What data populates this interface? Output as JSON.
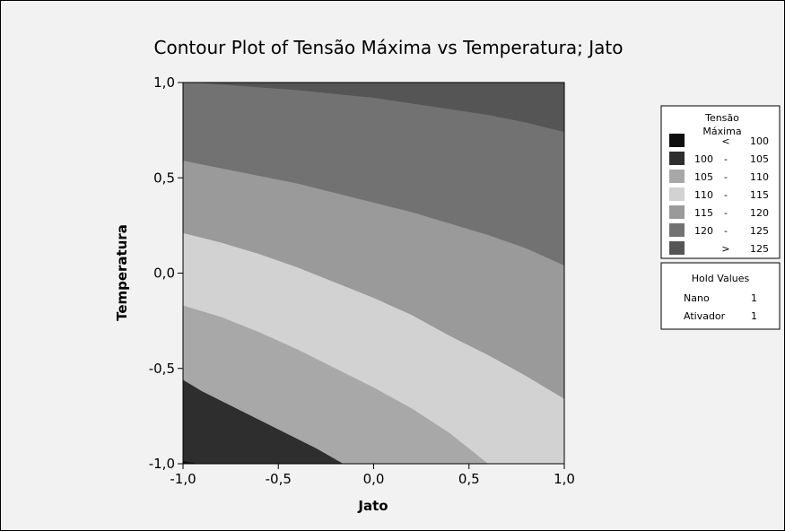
{
  "chart_data": {
    "type": "contour",
    "title": "Contour Plot of Tensão Máxima vs Temperatura; Jato",
    "xlabel": "Jato",
    "ylabel": "Temperatura",
    "xlim": [
      -1.0,
      1.0
    ],
    "ylim": [
      -1.0,
      1.0
    ],
    "x_ticks": [
      "-1,0",
      "-0,5",
      "0,0",
      "0,5",
      "1,0"
    ],
    "y_ticks": [
      "-1,0",
      "-0,5",
      "0,0",
      "0,5",
      "1,0"
    ],
    "x_tick_values": [
      -1.0,
      -0.5,
      0.0,
      0.5,
      1.0
    ],
    "y_tick_values": [
      -1.0,
      -0.5,
      0.0,
      0.5,
      1.0
    ],
    "legend": {
      "title_line1": "Tensão",
      "title_line2": "Máxima",
      "levels": [
        {
          "low": "",
          "sep": "<",
          "high": "100",
          "color": "#0e0e0e"
        },
        {
          "low": "100",
          "sep": "-",
          "high": "105",
          "color": "#2e2e2e"
        },
        {
          "low": "105",
          "sep": "-",
          "high": "110",
          "color": "#a8a8a8"
        },
        {
          "low": "110",
          "sep": "-",
          "high": "115",
          "color": "#d2d2d2"
        },
        {
          "low": "115",
          "sep": "-",
          "high": "120",
          "color": "#9a9a9a"
        },
        {
          "low": "120",
          "sep": "-",
          "high": "125",
          "color": "#727272"
        },
        {
          "low": "",
          "sep": ">",
          "high": "125",
          "color": "#555555"
        }
      ],
      "placement": "right"
    },
    "hold_values": {
      "title": "Hold Values",
      "items": [
        {
          "name": "Nano",
          "value": "1"
        },
        {
          "name": "Ativador",
          "value": "1"
        }
      ]
    },
    "contour_lines": [
      {
        "level": 100,
        "points": [
          [
            -1.0,
            -0.985
          ],
          [
            -0.92,
            -1.0
          ]
        ]
      },
      {
        "level": 105,
        "points": [
          [
            -1.0,
            -0.56
          ],
          [
            -0.9,
            -0.62
          ],
          [
            -0.7,
            -0.72
          ],
          [
            -0.5,
            -0.82
          ],
          [
            -0.3,
            -0.92
          ],
          [
            -0.16,
            -1.0
          ]
        ]
      },
      {
        "level": 110,
        "points": [
          [
            -1.0,
            -0.17
          ],
          [
            -0.8,
            -0.23
          ],
          [
            -0.6,
            -0.31
          ],
          [
            -0.4,
            -0.4
          ],
          [
            -0.2,
            -0.5
          ],
          [
            0.0,
            -0.6
          ],
          [
            0.2,
            -0.71
          ],
          [
            0.4,
            -0.84
          ],
          [
            0.6,
            -1.0
          ]
        ]
      },
      {
        "level": 115,
        "points": [
          [
            -1.0,
            0.21
          ],
          [
            -0.8,
            0.16
          ],
          [
            -0.6,
            0.1
          ],
          [
            -0.4,
            0.03
          ],
          [
            -0.2,
            -0.05
          ],
          [
            0.0,
            -0.13
          ],
          [
            0.2,
            -0.22
          ],
          [
            0.4,
            -0.33
          ],
          [
            0.6,
            -0.43
          ],
          [
            0.8,
            -0.54
          ],
          [
            1.0,
            -0.66
          ]
        ]
      },
      {
        "level": 120,
        "points": [
          [
            -1.0,
            0.59
          ],
          [
            -0.8,
            0.55
          ],
          [
            -0.6,
            0.51
          ],
          [
            -0.4,
            0.47
          ],
          [
            -0.2,
            0.42
          ],
          [
            0.0,
            0.37
          ],
          [
            0.2,
            0.32
          ],
          [
            0.4,
            0.26
          ],
          [
            0.6,
            0.2
          ],
          [
            0.8,
            0.13
          ],
          [
            1.0,
            0.04
          ]
        ]
      },
      {
        "level": 125,
        "points": [
          [
            -0.95,
            1.0
          ],
          [
            -0.8,
            0.99
          ],
          [
            -0.6,
            0.975
          ],
          [
            -0.4,
            0.96
          ],
          [
            -0.2,
            0.94
          ],
          [
            0.0,
            0.92
          ],
          [
            0.2,
            0.89
          ],
          [
            0.4,
            0.86
          ],
          [
            0.6,
            0.83
          ],
          [
            0.8,
            0.79
          ],
          [
            1.0,
            0.74
          ]
        ]
      }
    ]
  }
}
